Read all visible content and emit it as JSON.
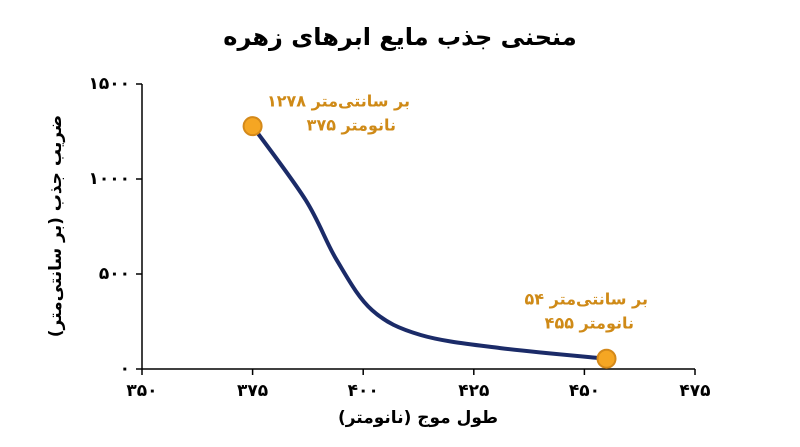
{
  "chart_data": {
    "type": "line",
    "title": "منحنی جذب مایع ابرهای زهره",
    "x_label": "طول موج (نانومتر)",
    "y_label": "ضریب جذب (بر سانتی‌متر)",
    "xlim": [
      350,
      475
    ],
    "ylim": [
      0,
      1500
    ],
    "xticks": [
      {
        "value": 350,
        "label": "۳۵۰"
      },
      {
        "value": 375,
        "label": "۳۷۵"
      },
      {
        "value": 400,
        "label": "۴۰۰"
      },
      {
        "value": 425,
        "label": "۴۲۵"
      },
      {
        "value": 450,
        "label": "۴۵۰"
      },
      {
        "value": 475,
        "label": "۴۷۵"
      }
    ],
    "yticks": [
      {
        "value": 0,
        "label": "۰"
      },
      {
        "value": 500,
        "label": "۵۰۰"
      },
      {
        "value": 1000,
        "label": "۱۰۰۰"
      },
      {
        "value": 1500,
        "label": "۱۵۰۰"
      }
    ],
    "series": [
      {
        "color": "#1b2b68",
        "marker_color": "#f5a623",
        "x": [
          375,
          387,
          394,
          402,
          413,
          431,
          455
        ],
        "values": [
          1278,
          889,
          574,
          310,
          179,
          110,
          54
        ]
      }
    ],
    "annotations": [
      {
        "lines": [
          "۱۲۷۸ بر سانتی‌متر",
          "۳۷۵ نانومتر"
        ],
        "color": "#cf8a17"
      },
      {
        "lines": [
          "۵۴ بر سانتی‌متر",
          "۴۵۵ نانومتر"
        ],
        "color": "#cf8a17"
      }
    ]
  }
}
